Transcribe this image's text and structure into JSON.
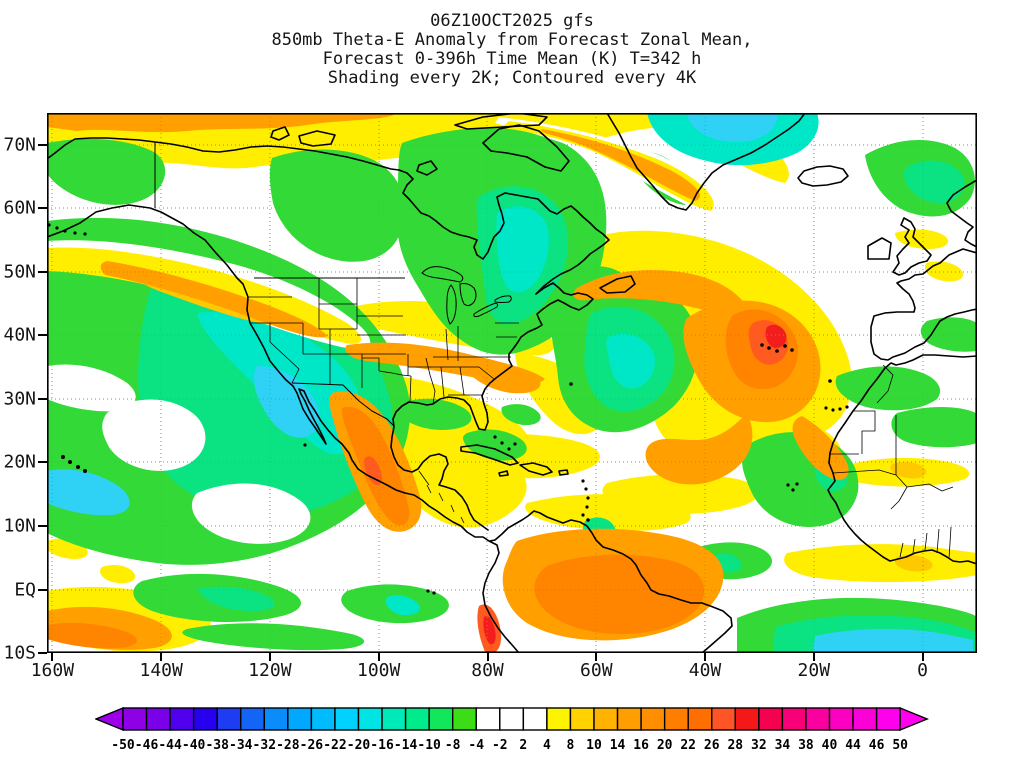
{
  "title": {
    "line1": "06Z10OCT2025 gfs",
    "line2": "850mb Theta-E Anomaly from Forecast Zonal Mean,",
    "line3": "Forecast 0-396h Time Mean (K) T=342 h",
    "line4": "Shading every 2K; Contoured every 4K"
  },
  "palette": {
    "shade_green": "#33D936",
    "shade_spring": "#0BE383",
    "shade_teal": "#00E7C8",
    "shade_cyan": "#2FD2F4",
    "shade_yellow": "#FFEE00",
    "shade_gold": "#FFC900",
    "shade_orange": "#FFA000",
    "shade_deep_orange": "#FF8400",
    "shade_red_orange": "#FF5A20",
    "shade_red": "#F21E1E",
    "coastline": "#000000",
    "graticule": "#8A8A8A",
    "background": "#FFFFFF"
  },
  "colorbar": {
    "labels": [
      "-50",
      "-46",
      "-44",
      "-40",
      "-38",
      "-34",
      "-32",
      "-28",
      "-26",
      "-22",
      "-20",
      "-16",
      "-14",
      "-10",
      "-8",
      "-4",
      "-2",
      "2",
      "4",
      "8",
      "10",
      "14",
      "16",
      "20",
      "22",
      "26",
      "28",
      "32",
      "34",
      "38",
      "40",
      "44",
      "46",
      "50"
    ],
    "cell_colors": [
      "#8E00E6",
      "#7A00EA",
      "#5000EE",
      "#2800F0",
      "#1E3CF2",
      "#1464F6",
      "#0A8CFA",
      "#00A8FF",
      "#00BCFF",
      "#00D2FF",
      "#00E4E4",
      "#00E9B8",
      "#00EC8C",
      "#12E65A",
      "#3CDC16",
      "#FFFFFF",
      "#FFFFFF",
      "#FFFFFF",
      "#FFF400",
      "#FFD200",
      "#FFB200",
      "#FF9E00",
      "#FF8E00",
      "#FF7E00",
      "#FF6E00",
      "#FF5426",
      "#F41818",
      "#F60050",
      "#F80078",
      "#FA00A0",
      "#FB00C0",
      "#FC00D8",
      "#FE00EC"
    ],
    "left_arrow_color": "#9D00E8",
    "right_arrow_color": "#FF00EE"
  },
  "chart_data": {
    "type": "heatmap",
    "subtype": "filled-contour anomaly map (GrADS style)",
    "title": "06Z10OCT2025 gfs | 850mb Theta-E Anomaly from Forecast Zonal Mean, Forecast 0-396h Time Mean (K) T=342 h",
    "shading_note": "Shading every 2K; Contoured every 4K",
    "units": "K",
    "projection": "cylindrical equidistant lat-lon",
    "lon_axis": {
      "labels": [
        "160W",
        "140W",
        "120W",
        "100W",
        "80W",
        "60W",
        "40W",
        "20W",
        "0"
      ],
      "range_deg": [
        -161,
        10
      ]
    },
    "lat_axis": {
      "labels": [
        "70N",
        "60N",
        "50N",
        "40N",
        "30N",
        "20N",
        "10N",
        "EQ",
        "10S"
      ],
      "range_deg": [
        -10,
        75
      ]
    },
    "graticule": "dotted grid every 20 deg longitude x 10 deg latitude",
    "colorbar_levels": [
      -50,
      -46,
      -44,
      -40,
      -38,
      -34,
      -32,
      -28,
      -26,
      -22,
      -20,
      -16,
      -14,
      -10,
      -8,
      -4,
      -2,
      2,
      4,
      8,
      10,
      14,
      16,
      20,
      22,
      26,
      28,
      32,
      34,
      38,
      40,
      44,
      46,
      50
    ],
    "notable_anomalies": [
      {
        "region": "central North Atlantic near Azores (~30W, 38N)",
        "value_K": 30,
        "sign": "positive",
        "note": "red maximum inside large orange swirl"
      },
      {
        "region": "southern US plains / Texas / Mexico Sierra Madre",
        "value_K": 14,
        "sign": "positive"
      },
      {
        "region": "Amazon basin / Peru coast",
        "value_K": 22,
        "sign": "positive",
        "note": "red-orange streak along Peru coast"
      },
      {
        "region": "equatorial Pacific, bottom-left corner",
        "value_K": 12,
        "sign": "positive"
      },
      {
        "region": "NE Pacific (150W-110W, 0-45N)",
        "value_K": -12,
        "sign": "negative",
        "note": "broad green/teal pool, cyan streak near Baja"
      },
      {
        "region": "Hudson Bay / Quebec / Great Lakes",
        "value_K": -10,
        "sign": "negative"
      },
      {
        "region": "Baffin Bay / NW Greenland",
        "value_K": -18,
        "sign": "negative",
        "note": "cyan core at top center"
      },
      {
        "region": "Norwegian Sea / northern Europe",
        "value_K": -12,
        "sign": "negative"
      },
      {
        "region": "Gulf of Guinea / tropical South Atlantic (5-10S)",
        "value_K": -18,
        "sign": "negative",
        "note": "cyan dome at bottom right"
      },
      {
        "region": "subtropical Atlantic west of swirl (~55W, 30N)",
        "value_K": -10,
        "sign": "negative"
      },
      {
        "region": "Sahara / Sahel",
        "value_K": -7,
        "sign": "negative"
      },
      {
        "region": "Arctic coast along top edge",
        "value_K": 8,
        "sign": "positive",
        "note": "yellow-orange band"
      }
    ]
  }
}
